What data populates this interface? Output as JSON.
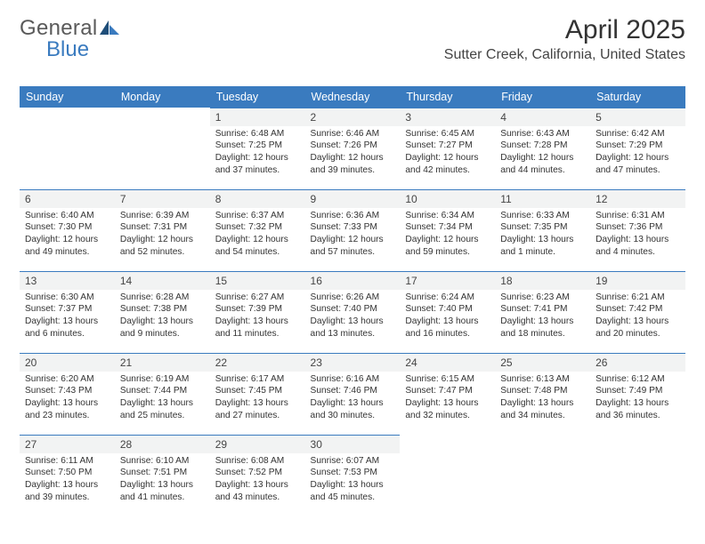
{
  "brand": {
    "part1": "General",
    "part2": "Blue"
  },
  "title": "April 2025",
  "location": "Sutter Creek, California, United States",
  "columns": [
    "Sunday",
    "Monday",
    "Tuesday",
    "Wednesday",
    "Thursday",
    "Friday",
    "Saturday"
  ],
  "colors": {
    "header_bg": "#3a7bbf",
    "header_text": "#ffffff",
    "daybar_bg": "#f2f3f3",
    "daybar_border": "#3a7bbf",
    "page_bg": "#ffffff",
    "text": "#333333",
    "logo_gray": "#5a5a5a",
    "logo_blue": "#3a7bbf"
  },
  "weeks": [
    [
      {
        "day": "",
        "sunrise": "",
        "sunset": "",
        "daylight": ""
      },
      {
        "day": "",
        "sunrise": "",
        "sunset": "",
        "daylight": ""
      },
      {
        "day": "1",
        "sunrise": "Sunrise: 6:48 AM",
        "sunset": "Sunset: 7:25 PM",
        "daylight": "Daylight: 12 hours and 37 minutes."
      },
      {
        "day": "2",
        "sunrise": "Sunrise: 6:46 AM",
        "sunset": "Sunset: 7:26 PM",
        "daylight": "Daylight: 12 hours and 39 minutes."
      },
      {
        "day": "3",
        "sunrise": "Sunrise: 6:45 AM",
        "sunset": "Sunset: 7:27 PM",
        "daylight": "Daylight: 12 hours and 42 minutes."
      },
      {
        "day": "4",
        "sunrise": "Sunrise: 6:43 AM",
        "sunset": "Sunset: 7:28 PM",
        "daylight": "Daylight: 12 hours and 44 minutes."
      },
      {
        "day": "5",
        "sunrise": "Sunrise: 6:42 AM",
        "sunset": "Sunset: 7:29 PM",
        "daylight": "Daylight: 12 hours and 47 minutes."
      }
    ],
    [
      {
        "day": "6",
        "sunrise": "Sunrise: 6:40 AM",
        "sunset": "Sunset: 7:30 PM",
        "daylight": "Daylight: 12 hours and 49 minutes."
      },
      {
        "day": "7",
        "sunrise": "Sunrise: 6:39 AM",
        "sunset": "Sunset: 7:31 PM",
        "daylight": "Daylight: 12 hours and 52 minutes."
      },
      {
        "day": "8",
        "sunrise": "Sunrise: 6:37 AM",
        "sunset": "Sunset: 7:32 PM",
        "daylight": "Daylight: 12 hours and 54 minutes."
      },
      {
        "day": "9",
        "sunrise": "Sunrise: 6:36 AM",
        "sunset": "Sunset: 7:33 PM",
        "daylight": "Daylight: 12 hours and 57 minutes."
      },
      {
        "day": "10",
        "sunrise": "Sunrise: 6:34 AM",
        "sunset": "Sunset: 7:34 PM",
        "daylight": "Daylight: 12 hours and 59 minutes."
      },
      {
        "day": "11",
        "sunrise": "Sunrise: 6:33 AM",
        "sunset": "Sunset: 7:35 PM",
        "daylight": "Daylight: 13 hours and 1 minute."
      },
      {
        "day": "12",
        "sunrise": "Sunrise: 6:31 AM",
        "sunset": "Sunset: 7:36 PM",
        "daylight": "Daylight: 13 hours and 4 minutes."
      }
    ],
    [
      {
        "day": "13",
        "sunrise": "Sunrise: 6:30 AM",
        "sunset": "Sunset: 7:37 PM",
        "daylight": "Daylight: 13 hours and 6 minutes."
      },
      {
        "day": "14",
        "sunrise": "Sunrise: 6:28 AM",
        "sunset": "Sunset: 7:38 PM",
        "daylight": "Daylight: 13 hours and 9 minutes."
      },
      {
        "day": "15",
        "sunrise": "Sunrise: 6:27 AM",
        "sunset": "Sunset: 7:39 PM",
        "daylight": "Daylight: 13 hours and 11 minutes."
      },
      {
        "day": "16",
        "sunrise": "Sunrise: 6:26 AM",
        "sunset": "Sunset: 7:40 PM",
        "daylight": "Daylight: 13 hours and 13 minutes."
      },
      {
        "day": "17",
        "sunrise": "Sunrise: 6:24 AM",
        "sunset": "Sunset: 7:40 PM",
        "daylight": "Daylight: 13 hours and 16 minutes."
      },
      {
        "day": "18",
        "sunrise": "Sunrise: 6:23 AM",
        "sunset": "Sunset: 7:41 PM",
        "daylight": "Daylight: 13 hours and 18 minutes."
      },
      {
        "day": "19",
        "sunrise": "Sunrise: 6:21 AM",
        "sunset": "Sunset: 7:42 PM",
        "daylight": "Daylight: 13 hours and 20 minutes."
      }
    ],
    [
      {
        "day": "20",
        "sunrise": "Sunrise: 6:20 AM",
        "sunset": "Sunset: 7:43 PM",
        "daylight": "Daylight: 13 hours and 23 minutes."
      },
      {
        "day": "21",
        "sunrise": "Sunrise: 6:19 AM",
        "sunset": "Sunset: 7:44 PM",
        "daylight": "Daylight: 13 hours and 25 minutes."
      },
      {
        "day": "22",
        "sunrise": "Sunrise: 6:17 AM",
        "sunset": "Sunset: 7:45 PM",
        "daylight": "Daylight: 13 hours and 27 minutes."
      },
      {
        "day": "23",
        "sunrise": "Sunrise: 6:16 AM",
        "sunset": "Sunset: 7:46 PM",
        "daylight": "Daylight: 13 hours and 30 minutes."
      },
      {
        "day": "24",
        "sunrise": "Sunrise: 6:15 AM",
        "sunset": "Sunset: 7:47 PM",
        "daylight": "Daylight: 13 hours and 32 minutes."
      },
      {
        "day": "25",
        "sunrise": "Sunrise: 6:13 AM",
        "sunset": "Sunset: 7:48 PM",
        "daylight": "Daylight: 13 hours and 34 minutes."
      },
      {
        "day": "26",
        "sunrise": "Sunrise: 6:12 AM",
        "sunset": "Sunset: 7:49 PM",
        "daylight": "Daylight: 13 hours and 36 minutes."
      }
    ],
    [
      {
        "day": "27",
        "sunrise": "Sunrise: 6:11 AM",
        "sunset": "Sunset: 7:50 PM",
        "daylight": "Daylight: 13 hours and 39 minutes."
      },
      {
        "day": "28",
        "sunrise": "Sunrise: 6:10 AM",
        "sunset": "Sunset: 7:51 PM",
        "daylight": "Daylight: 13 hours and 41 minutes."
      },
      {
        "day": "29",
        "sunrise": "Sunrise: 6:08 AM",
        "sunset": "Sunset: 7:52 PM",
        "daylight": "Daylight: 13 hours and 43 minutes."
      },
      {
        "day": "30",
        "sunrise": "Sunrise: 6:07 AM",
        "sunset": "Sunset: 7:53 PM",
        "daylight": "Daylight: 13 hours and 45 minutes."
      },
      {
        "day": "",
        "sunrise": "",
        "sunset": "",
        "daylight": ""
      },
      {
        "day": "",
        "sunrise": "",
        "sunset": "",
        "daylight": ""
      },
      {
        "day": "",
        "sunrise": "",
        "sunset": "",
        "daylight": ""
      }
    ]
  ]
}
